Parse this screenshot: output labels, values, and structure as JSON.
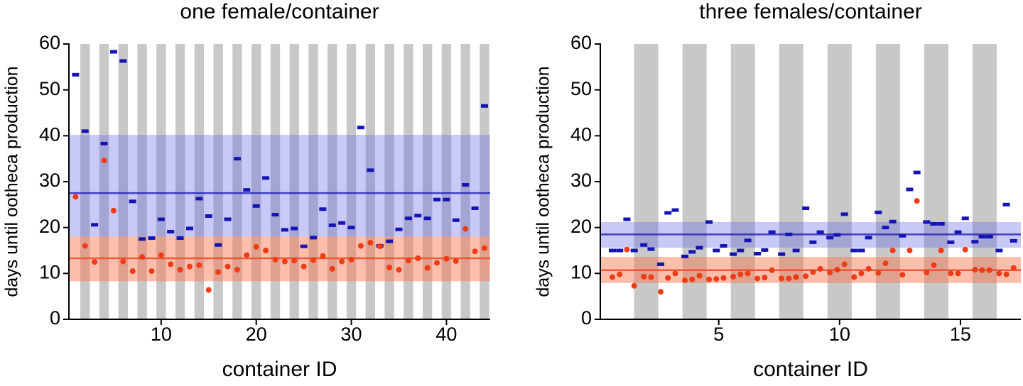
{
  "chart_data": [
    {
      "type": "scatter",
      "title": "one female/container",
      "xlabel": "container ID",
      "ylabel": "days until ootheca production",
      "xlim": [
        0.3,
        44.6
      ],
      "xticks": [
        10,
        20,
        30,
        40
      ],
      "ylim": [
        0,
        60
      ],
      "yticks": [
        0,
        10,
        20,
        30,
        40,
        50,
        60
      ],
      "stripe_color": "#c8c8c8",
      "series": [
        {
          "color": "#1414b4",
          "marker": "dash",
          "band_color": "rgba(100,100,235,0.35)",
          "mean": 27.5,
          "band": [
            18,
            40.2
          ],
          "x": [
            1,
            2,
            3,
            4,
            5,
            6,
            7,
            8,
            9,
            10,
            11,
            12,
            13,
            14,
            15,
            16,
            17,
            18,
            19,
            20,
            21,
            22,
            23,
            24,
            25,
            26,
            27,
            28,
            29,
            30,
            31,
            32,
            33,
            34,
            35,
            36,
            37,
            38,
            39,
            40,
            41,
            42,
            43,
            44
          ],
          "values": [
            53.3,
            41,
            20.6,
            38.3,
            58.3,
            56.3,
            25.7,
            17.5,
            17.7,
            21.8,
            19.1,
            17.7,
            19.8,
            26.3,
            22.5,
            16.2,
            21.8,
            35,
            28.2,
            24.7,
            30.8,
            22.8,
            19.5,
            19.8,
            15.9,
            17.8,
            24,
            20.5,
            21,
            20,
            41.8,
            32.5,
            16,
            17,
            19.6,
            22,
            22.6,
            22,
            26.1,
            26.1,
            21.6,
            29.3,
            24.2,
            46.5
          ]
        },
        {
          "color": "#f03c14",
          "marker": "circle",
          "band_color": "rgba(250,110,70,0.45)",
          "mean": 13.3,
          "band": [
            8.3,
            18
          ],
          "x": [
            1,
            2,
            3,
            4,
            5,
            6,
            7,
            8,
            9,
            10,
            11,
            12,
            13,
            14,
            15,
            16,
            17,
            18,
            19,
            20,
            21,
            22,
            23,
            24,
            25,
            26,
            27,
            28,
            29,
            30,
            31,
            32,
            33,
            34,
            35,
            36,
            37,
            38,
            39,
            40,
            41,
            42,
            43,
            44
          ],
          "values": [
            26.7,
            16,
            12.5,
            34.6,
            23.7,
            12.6,
            10.5,
            13.6,
            10.5,
            14,
            12,
            10.8,
            11.5,
            11.8,
            6.4,
            10.3,
            11.5,
            10.8,
            14,
            15.8,
            15,
            13,
            12.6,
            12.8,
            11.5,
            12.9,
            13.8,
            11,
            12.6,
            13,
            16,
            16.7,
            15.9,
            11.3,
            10.8,
            12.8,
            13.3,
            11.2,
            12.3,
            13.2,
            12.7,
            19.7,
            14.8,
            15.5
          ]
        }
      ]
    },
    {
      "type": "scatter",
      "title": "three females/container",
      "xlabel": "container ID",
      "ylabel": "days until ootheca production",
      "xlim": [
        0.1,
        17.5
      ],
      "xticks": [
        5,
        10,
        15
      ],
      "ylim": [
        0,
        60
      ],
      "yticks": [
        0,
        10,
        20,
        30,
        40,
        50,
        60
      ],
      "stripe_color": "#c8c8c8",
      "series": [
        {
          "color": "#1414b4",
          "marker": "dash",
          "band_color": "rgba(100,100,235,0.35)",
          "mean": 18.5,
          "band": [
            15.6,
            21.2
          ],
          "x": [
            0.6,
            0.9,
            1.2,
            1.5,
            1.9,
            2.2,
            2.6,
            2.9,
            3.2,
            3.6,
            3.9,
            4.2,
            4.6,
            4.9,
            5.2,
            5.6,
            5.9,
            6.2,
            6.6,
            6.9,
            7.2,
            7.6,
            7.9,
            8.2,
            8.6,
            8.9,
            9.2,
            9.6,
            9.9,
            10.2,
            10.6,
            10.9,
            11.2,
            11.6,
            11.9,
            12.2,
            12.6,
            12.9,
            13.2,
            13.6,
            13.9,
            14.2,
            14.6,
            14.9,
            15.2,
            15.6,
            15.9,
            16.2,
            16.6,
            16.9,
            17.2
          ],
          "values": [
            15,
            15,
            21.8,
            15,
            16.2,
            15.3,
            12,
            23.2,
            23.8,
            13.7,
            14.7,
            15.6,
            21.2,
            15,
            16,
            14.2,
            15,
            17.2,
            14.3,
            15.1,
            19,
            14.2,
            18.5,
            15,
            24.2,
            16.8,
            19,
            17.8,
            18.4,
            22.9,
            15,
            15,
            17.8,
            23.3,
            20,
            21.3,
            18.2,
            28.3,
            32,
            21.2,
            20.8,
            20.8,
            16.8,
            19,
            22,
            16.9,
            18,
            18,
            15,
            25,
            17.1
          ]
        },
        {
          "color": "#f03c14",
          "marker": "circle",
          "band_color": "rgba(250,110,70,0.45)",
          "mean": 10.7,
          "band": [
            7.9,
            13.6
          ],
          "x": [
            0.6,
            0.9,
            1.2,
            1.5,
            1.9,
            2.2,
            2.6,
            2.9,
            3.2,
            3.6,
            3.9,
            4.2,
            4.6,
            4.9,
            5.2,
            5.6,
            5.9,
            6.2,
            6.6,
            6.9,
            7.2,
            7.6,
            7.9,
            8.2,
            8.6,
            8.9,
            9.2,
            9.6,
            9.9,
            10.2,
            10.6,
            10.9,
            11.2,
            11.6,
            11.9,
            12.2,
            12.6,
            12.9,
            13.2,
            13.6,
            13.9,
            14.2,
            14.6,
            14.9,
            15.2,
            15.6,
            15.9,
            16.2,
            16.6,
            16.9,
            17.2
          ],
          "values": [
            9.2,
            9.8,
            15.2,
            7.3,
            9.3,
            9.2,
            6,
            9,
            10,
            8.5,
            8.7,
            9.5,
            8.7,
            8.8,
            9,
            9.3,
            9.8,
            10,
            8.9,
            9.1,
            10.7,
            8.9,
            8.9,
            9.2,
            9.4,
            10.3,
            11,
            10.2,
            10.8,
            12,
            9.2,
            10,
            11,
            10.1,
            12.2,
            15,
            9.7,
            15,
            25.8,
            10.2,
            11.8,
            15,
            10,
            10,
            15.2,
            10.8,
            10.7,
            10.7,
            10,
            9.8,
            11.2
          ]
        }
      ]
    }
  ]
}
